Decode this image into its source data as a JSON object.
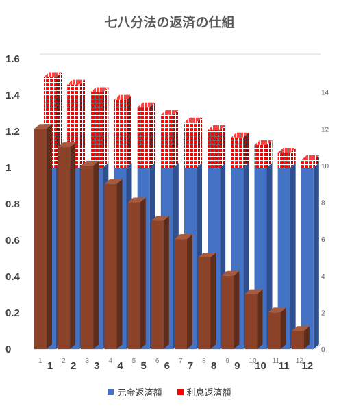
{
  "chart_data": {
    "type": "bar",
    "title": "七八分法の返済の仕組",
    "categories": [
      "1",
      "2",
      "3",
      "4",
      "5",
      "6",
      "7",
      "8",
      "9",
      "10",
      "11",
      "12"
    ],
    "primary_axis": {
      "ylim": [
        0,
        1.6
      ],
      "ticks": [
        "0",
        "0.2",
        "0.4",
        "0.6",
        "0.8",
        "1",
        "1.2",
        "1.4",
        "1.6"
      ]
    },
    "secondary_axis": {
      "ylim": [
        0,
        16
      ],
      "ticks": [
        "0",
        "2",
        "4",
        "6",
        "8",
        "10",
        "12",
        "14"
      ]
    },
    "front_axis": {
      "categories": [
        "1",
        "2",
        "3",
        "4",
        "5",
        "6",
        "7",
        "8",
        "9",
        "10",
        "11",
        "12"
      ],
      "values": [
        12,
        11,
        10,
        9,
        8,
        7,
        6,
        5,
        4,
        3,
        2,
        1
      ],
      "scale": "secondary",
      "color": "#8B4229"
    },
    "series": [
      {
        "name": "元金返済額",
        "values": [
          1,
          1,
          1,
          1,
          1,
          1,
          1,
          1,
          1,
          1,
          1,
          1
        ],
        "color": "#4472C4",
        "stack": "back"
      },
      {
        "name": "利息返済額",
        "values": [
          0.5,
          0.458,
          0.417,
          0.375,
          0.333,
          0.292,
          0.25,
          0.208,
          0.167,
          0.125,
          0.083,
          0.042
        ],
        "color": "#FF0000",
        "stack": "back",
        "pattern": "white-grid"
      }
    ],
    "legend_position": "bottom",
    "grid": false
  }
}
